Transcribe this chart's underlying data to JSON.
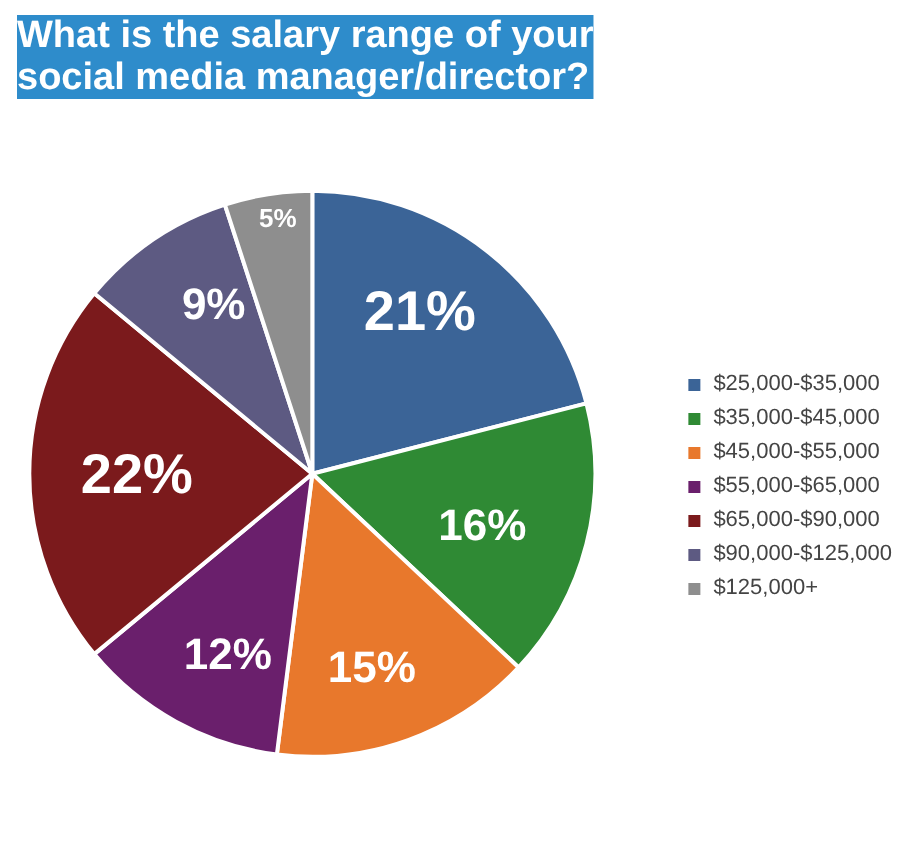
{
  "chart_data": {
    "type": "pie",
    "title": "What is the salary range of your social media manager/director?",
    "categories": [
      "$25,000-$35,000",
      "$35,000-$45,000",
      "$45,000-$55,000",
      "$55,000-$65,000",
      "$65,000-$90,000",
      "$90,000-$125,000",
      "$125,000+"
    ],
    "values": [
      21,
      16,
      15,
      12,
      22,
      9,
      5
    ],
    "colors": [
      "#3b6497",
      "#2f8a34",
      "#e8782c",
      "#6a1f6c",
      "#7b1a1c",
      "#5d5a82",
      "#8e8e8e"
    ],
    "value_labels": [
      "21%",
      "16%",
      "15%",
      "12%",
      "22%",
      "9%",
      "5%"
    ],
    "legend": "right"
  }
}
